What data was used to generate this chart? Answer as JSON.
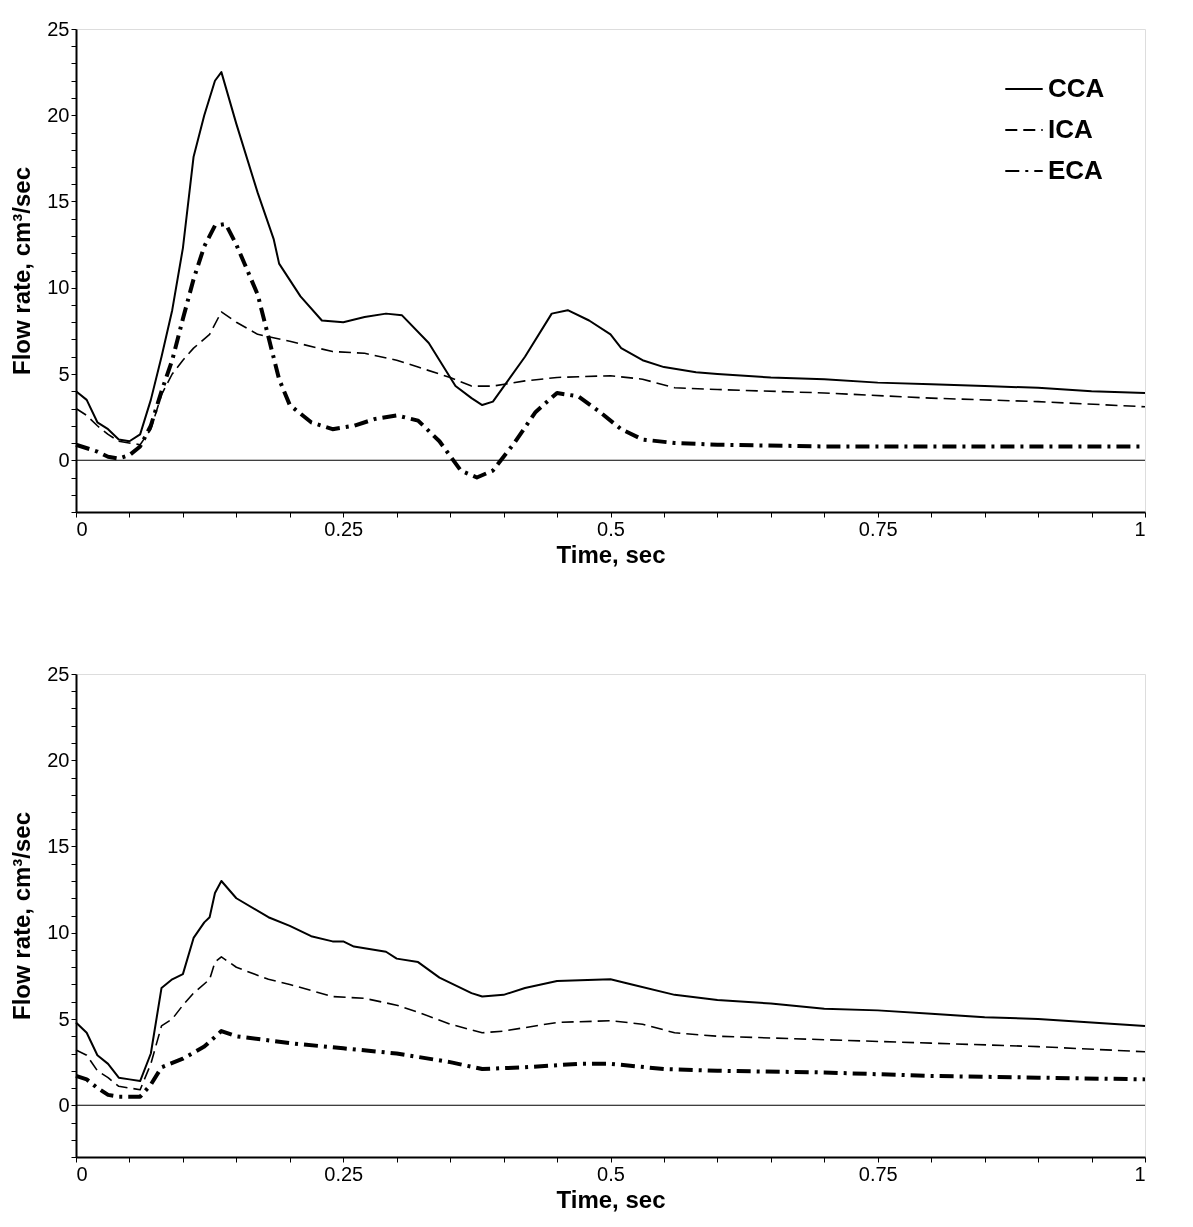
{
  "chart_data": [
    {
      "type": "line",
      "xlabel": "Time, sec",
      "ylabel": "Flow rate, cm³/sec",
      "xlim": [
        0,
        1
      ],
      "ylim": [
        -3,
        25
      ],
      "xticks": [
        0,
        {
          "value": 0.05,
          "label": null
        },
        {
          "value": 0.1,
          "label": null
        },
        {
          "value": 0.15,
          "label": null
        },
        {
          "value": 0.2,
          "label": null
        },
        0.25,
        {
          "value": 0.3,
          "label": null
        },
        {
          "value": 0.35,
          "label": null
        },
        {
          "value": 0.4,
          "label": null
        },
        {
          "value": 0.45,
          "label": null
        },
        0.5,
        {
          "value": 0.55,
          "label": null
        },
        {
          "value": 0.6,
          "label": null
        },
        {
          "value": 0.65,
          "label": null
        },
        {
          "value": 0.7,
          "label": null
        },
        0.75,
        {
          "value": 0.8,
          "label": null
        },
        {
          "value": 0.85,
          "label": null
        },
        {
          "value": 0.9,
          "label": null
        },
        {
          "value": 0.95,
          "label": null
        },
        1
      ],
      "yticks": [
        {
          "value": -3,
          "label": null
        },
        {
          "value": -2,
          "label": null
        },
        {
          "value": -1,
          "label": null
        },
        0,
        {
          "value": 1,
          "label": null
        },
        {
          "value": 2,
          "label": null
        },
        {
          "value": 3,
          "label": null
        },
        {
          "value": 4,
          "label": null
        },
        5,
        {
          "value": 6,
          "label": null
        },
        {
          "value": 7,
          "label": null
        },
        {
          "value": 8,
          "label": null
        },
        {
          "value": 9,
          "label": null
        },
        10,
        {
          "value": 11,
          "label": null
        },
        {
          "value": 12,
          "label": null
        },
        {
          "value": 13,
          "label": null
        },
        {
          "value": 14,
          "label": null
        },
        15,
        {
          "value": 16,
          "label": null
        },
        {
          "value": 17,
          "label": null
        },
        {
          "value": 18,
          "label": null
        },
        {
          "value": 19,
          "label": null
        },
        20,
        {
          "value": 21,
          "label": null
        },
        {
          "value": 22,
          "label": null
        },
        {
          "value": 23,
          "label": null
        },
        {
          "value": 24,
          "label": null
        },
        25
      ],
      "grid": false,
      "legend": "top right",
      "ref_lines": [
        {
          "axis": "y",
          "value": 0,
          "color": "#000000"
        }
      ],
      "series": [
        {
          "name": "CCA",
          "color": "#000000",
          "line_style": "solid",
          "x": [
            0,
            0.01,
            0.02,
            0.03,
            0.04,
            0.05,
            0.06,
            0.07,
            0.08,
            0.09,
            0.1,
            0.11,
            0.12,
            0.13,
            0.136,
            0.15,
            0.17,
            0.185,
            0.19,
            0.21,
            0.23,
            0.25,
            0.27,
            0.29,
            0.305,
            0.33,
            0.355,
            0.37,
            0.38,
            0.39,
            0.42,
            0.445,
            0.46,
            0.48,
            0.5,
            0.51,
            0.53,
            0.55,
            0.58,
            0.6,
            0.65,
            0.7,
            0.75,
            0.8,
            0.85,
            0.9,
            0.95,
            1.0
          ],
          "values": [
            4.0,
            3.5,
            2.2,
            1.8,
            1.2,
            1.1,
            1.5,
            3.5,
            6,
            8.7,
            12.3,
            17.6,
            20,
            22,
            22.5,
            19.5,
            15.5,
            12.8,
            11.4,
            9.5,
            8.1,
            8.0,
            8.3,
            8.5,
            8.4,
            6.8,
            4.3,
            3.6,
            3.2,
            3.4,
            6,
            8.5,
            8.7,
            8.1,
            7.3,
            6.5,
            5.8,
            5.4,
            5.1,
            5.0,
            4.8,
            4.7,
            4.5,
            4.4,
            4.3,
            4.2,
            4.0,
            3.9
          ]
        },
        {
          "name": "ICA",
          "color": "#000000",
          "line_style": "dashed",
          "x": [
            0,
            0.01,
            0.02,
            0.03,
            0.04,
            0.06,
            0.07,
            0.08,
            0.09,
            0.1,
            0.11,
            0.125,
            0.136,
            0.15,
            0.17,
            0.2,
            0.24,
            0.27,
            0.3,
            0.32,
            0.35,
            0.37,
            0.39,
            0.42,
            0.45,
            0.5,
            0.53,
            0.56,
            0.6,
            0.7,
            0.8,
            0.9,
            1.0
          ],
          "values": [
            3.0,
            2.6,
            2.0,
            1.5,
            1.1,
            0.9,
            1.8,
            3.8,
            5.0,
            5.8,
            6.5,
            7.3,
            8.6,
            8.0,
            7.3,
            6.9,
            6.3,
            6.2,
            5.8,
            5.4,
            4.8,
            4.3,
            4.3,
            4.6,
            4.8,
            4.9,
            4.7,
            4.2,
            4.1,
            3.9,
            3.6,
            3.4,
            3.1
          ]
        },
        {
          "name": "ECA",
          "color": "#000000",
          "line_style": "dashdot",
          "x": [
            0,
            0.02,
            0.03,
            0.04,
            0.05,
            0.06,
            0.07,
            0.08,
            0.09,
            0.1,
            0.11,
            0.12,
            0.13,
            0.14,
            0.15,
            0.17,
            0.19,
            0.2,
            0.22,
            0.24,
            0.26,
            0.28,
            0.3,
            0.32,
            0.34,
            0.36,
            0.375,
            0.39,
            0.41,
            0.43,
            0.45,
            0.47,
            0.49,
            0.51,
            0.53,
            0.56,
            0.6,
            0.7,
            0.8,
            0.9,
            1.0
          ],
          "values": [
            0.9,
            0.5,
            0.2,
            0.1,
            0.3,
            0.8,
            2.0,
            4.0,
            5.8,
            8.2,
            10.5,
            12.4,
            13.6,
            13.7,
            12.5,
            9.6,
            4.7,
            3.2,
            2.2,
            1.8,
            2.0,
            2.4,
            2.6,
            2.3,
            1.1,
            -0.6,
            -1.0,
            -0.6,
            1.0,
            2.8,
            3.9,
            3.7,
            2.8,
            1.8,
            1.2,
            1.0,
            0.9,
            0.8,
            0.8,
            0.8,
            0.8
          ]
        }
      ]
    },
    {
      "type": "line",
      "xlabel": "Time, sec",
      "ylabel": "Flow rate, cm³/sec",
      "xlim": [
        0,
        1
      ],
      "ylim": [
        -3,
        25
      ],
      "xticks": [
        0,
        {
          "value": 0.05,
          "label": null
        },
        {
          "value": 0.1,
          "label": null
        },
        {
          "value": 0.15,
          "label": null
        },
        {
          "value": 0.2,
          "label": null
        },
        0.25,
        {
          "value": 0.3,
          "label": null
        },
        {
          "value": 0.35,
          "label": null
        },
        {
          "value": 0.4,
          "label": null
        },
        {
          "value": 0.45,
          "label": null
        },
        0.5,
        {
          "value": 0.55,
          "label": null
        },
        {
          "value": 0.6,
          "label": null
        },
        {
          "value": 0.65,
          "label": null
        },
        {
          "value": 0.7,
          "label": null
        },
        0.75,
        {
          "value": 0.8,
          "label": null
        },
        {
          "value": 0.85,
          "label": null
        },
        {
          "value": 0.9,
          "label": null
        },
        {
          "value": 0.95,
          "label": null
        },
        1
      ],
      "yticks": [
        {
          "value": -3,
          "label": null
        },
        {
          "value": -2,
          "label": null
        },
        {
          "value": -1,
          "label": null
        },
        0,
        {
          "value": 1,
          "label": null
        },
        {
          "value": 2,
          "label": null
        },
        {
          "value": 3,
          "label": null
        },
        {
          "value": 4,
          "label": null
        },
        5,
        {
          "value": 6,
          "label": null
        },
        {
          "value": 7,
          "label": null
        },
        {
          "value": 8,
          "label": null
        },
        {
          "value": 9,
          "label": null
        },
        10,
        {
          "value": 11,
          "label": null
        },
        {
          "value": 12,
          "label": null
        },
        {
          "value": 13,
          "label": null
        },
        {
          "value": 14,
          "label": null
        },
        15,
        {
          "value": 16,
          "label": null
        },
        {
          "value": 17,
          "label": null
        },
        {
          "value": 18,
          "label": null
        },
        {
          "value": 19,
          "label": null
        },
        20,
        {
          "value": 21,
          "label": null
        },
        {
          "value": 22,
          "label": null
        },
        {
          "value": 23,
          "label": null
        },
        {
          "value": 24,
          "label": null
        },
        25
      ],
      "grid": false,
      "ref_lines": [
        {
          "axis": "y",
          "value": 0,
          "color": "#000000"
        }
      ],
      "series": [
        {
          "color": "#000000",
          "line_style": "solid",
          "x": [
            0,
            0.01,
            0.02,
            0.03,
            0.04,
            0.05,
            0.06,
            0.07,
            0.08,
            0.09,
            0.1,
            0.11,
            0.12,
            0.125,
            0.13,
            0.136,
            0.15,
            0.18,
            0.2,
            0.22,
            0.24,
            0.25,
            0.26,
            0.29,
            0.3,
            0.32,
            0.34,
            0.37,
            0.38,
            0.4,
            0.42,
            0.45,
            0.5,
            0.52,
            0.56,
            0.6,
            0.65,
            0.7,
            0.75,
            0.8,
            0.85,
            0.9,
            0.95,
            1.0
          ],
          "values": [
            4.8,
            4.2,
            2.9,
            2.4,
            1.6,
            1.5,
            1.4,
            3.0,
            6.8,
            7.3,
            7.6,
            9.7,
            10.6,
            10.9,
            12.3,
            13.0,
            12.0,
            10.9,
            10.4,
            9.8,
            9.5,
            9.5,
            9.2,
            8.9,
            8.5,
            8.3,
            7.4,
            6.5,
            6.3,
            6.4,
            6.8,
            7.2,
            7.3,
            7.0,
            6.4,
            6.1,
            5.9,
            5.6,
            5.5,
            5.3,
            5.1,
            5.0,
            4.8,
            4.6
          ]
        },
        {
          "color": "#000000",
          "line_style": "dashed",
          "x": [
            0,
            0.01,
            0.02,
            0.03,
            0.04,
            0.06,
            0.07,
            0.08,
            0.09,
            0.1,
            0.11,
            0.125,
            0.13,
            0.136,
            0.15,
            0.18,
            0.2,
            0.24,
            0.27,
            0.3,
            0.32,
            0.35,
            0.38,
            0.4,
            0.45,
            0.5,
            0.53,
            0.56,
            0.6,
            0.7,
            0.8,
            0.9,
            1.0
          ],
          "values": [
            3.2,
            2.9,
            2.0,
            1.6,
            1.1,
            0.9,
            2.4,
            4.6,
            5.0,
            5.8,
            6.5,
            7.3,
            8.3,
            8.6,
            8.0,
            7.3,
            7.0,
            6.3,
            6.2,
            5.8,
            5.4,
            4.7,
            4.2,
            4.3,
            4.8,
            4.9,
            4.7,
            4.2,
            4.0,
            3.8,
            3.6,
            3.4,
            3.1
          ]
        },
        {
          "color": "#000000",
          "line_style": "dashdot",
          "x": [
            0,
            0.01,
            0.02,
            0.03,
            0.04,
            0.06,
            0.07,
            0.08,
            0.1,
            0.12,
            0.136,
            0.15,
            0.2,
            0.25,
            0.3,
            0.35,
            0.38,
            0.42,
            0.47,
            0.5,
            0.55,
            0.6,
            0.7,
            0.8,
            0.9,
            1.0
          ],
          "values": [
            1.7,
            1.5,
            1.0,
            0.6,
            0.5,
            0.5,
            1.2,
            2.2,
            2.7,
            3.4,
            4.3,
            4.0,
            3.6,
            3.3,
            3.0,
            2.5,
            2.1,
            2.2,
            2.4,
            2.4,
            2.1,
            2.0,
            1.9,
            1.7,
            1.6,
            1.5
          ]
        }
      ]
    }
  ]
}
